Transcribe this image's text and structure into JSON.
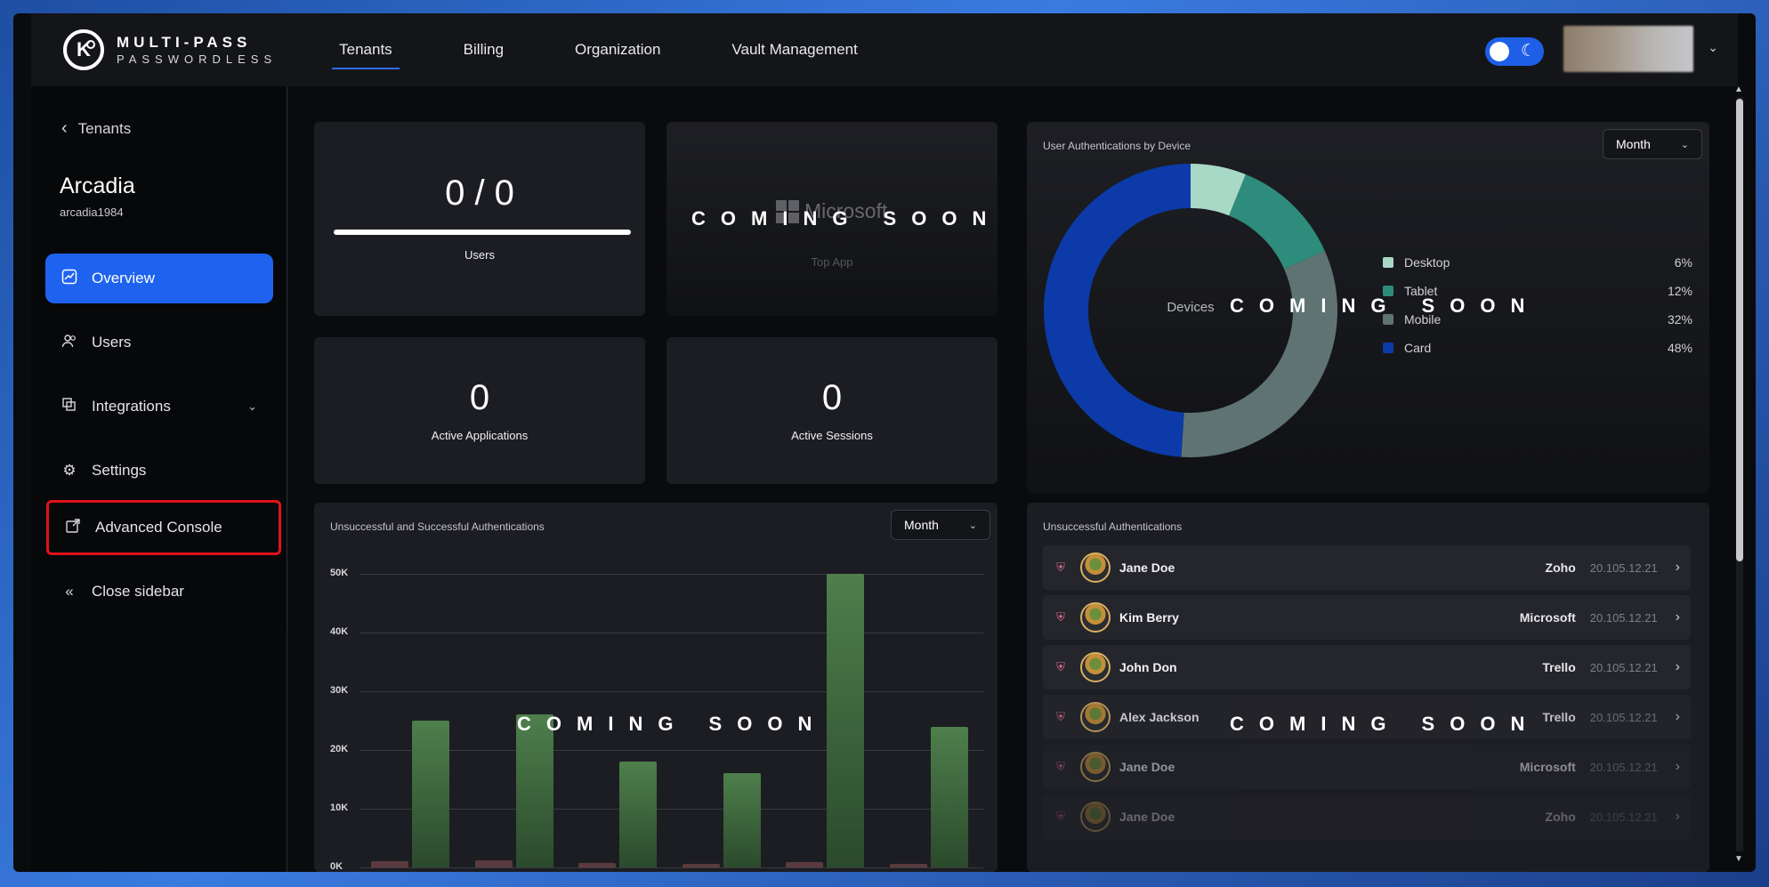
{
  "brand": {
    "mark": "K",
    "line1": "MULTI-PASS",
    "line2": "PASSWORDLESS"
  },
  "nav": [
    {
      "label": "Tenants",
      "active": true
    },
    {
      "label": "Billing"
    },
    {
      "label": "Organization"
    },
    {
      "label": "Vault Management"
    }
  ],
  "sidebar": {
    "back_label": "Tenants",
    "tenant_name": "Arcadia",
    "tenant_id": "arcadia1984",
    "items": [
      {
        "label": "Overview",
        "icon": "chart-icon",
        "active": true
      },
      {
        "label": "Users",
        "icon": "users-icon"
      },
      {
        "label": "Integrations",
        "icon": "integrations-icon"
      },
      {
        "label": "Settings",
        "icon": "gear-icon"
      },
      {
        "label": "Advanced Console",
        "icon": "external-link-icon"
      },
      {
        "label": "Close sidebar",
        "icon": "double-chevron-left-icon"
      }
    ]
  },
  "stats": {
    "users_value": "0 / 0",
    "users_label": "Users",
    "users_progress": 1.0,
    "top_app_name": "Microsoft",
    "top_app_label": "Top App",
    "active_apps_value": "0",
    "active_apps_label": "Active Applications",
    "active_sessions_value": "0",
    "active_sessions_label": "Active Sessions"
  },
  "coming_soon": "COMING SOON",
  "device_panel": {
    "title": "User Authentications by Device",
    "select_value": "Month",
    "center_label": "Devices"
  },
  "auth_chart_panel": {
    "title": "Unsuccessful and Successful Authentications",
    "select_value": "Month"
  },
  "failed_panel": {
    "title": "Unsuccessful Authentications",
    "rows": [
      {
        "name": "Jane Doe",
        "app": "Zoho",
        "ip": "20.105.12.21"
      },
      {
        "name": "Kim Berry",
        "app": "Microsoft",
        "ip": "20.105.12.21"
      },
      {
        "name": "John Don",
        "app": "Trello",
        "ip": "20.105.12.21"
      },
      {
        "name": "Alex Jackson",
        "app": "Trello",
        "ip": "20.105.12.21"
      },
      {
        "name": "Jane Doe",
        "app": "Microsoft",
        "ip": "20.105.12.21"
      },
      {
        "name": "Jane Doe",
        "app": "Zoho",
        "ip": "20.105.12.21"
      }
    ]
  },
  "chart_data": [
    {
      "type": "pie",
      "labels": [
        "Desktop",
        "Tablet",
        "Mobile",
        "Card"
      ],
      "values": [
        6,
        12,
        32,
        48
      ],
      "value_labels": [
        "6%",
        "12%",
        "32%",
        "48%"
      ],
      "colors": [
        "#a8d8c6",
        "#2e8c7c",
        "#5f7373",
        "#0c3aa8"
      ],
      "legend": "right",
      "title": "User Authentications by Device"
    },
    {
      "type": "bar",
      "title": "Unsuccessful and Successful Authentications",
      "yticks": [
        "50K",
        "40K",
        "30K",
        "20K",
        "10K",
        "0K"
      ],
      "ylim": [
        0,
        50000
      ],
      "series": [
        {
          "values": [
            1000,
            1200,
            800,
            600,
            900,
            500
          ],
          "color": "#5a3a3e"
        },
        {
          "values": [
            25000,
            26000,
            18000,
            16000,
            50000,
            24000
          ],
          "color": "#4e7f4c"
        }
      ]
    }
  ]
}
